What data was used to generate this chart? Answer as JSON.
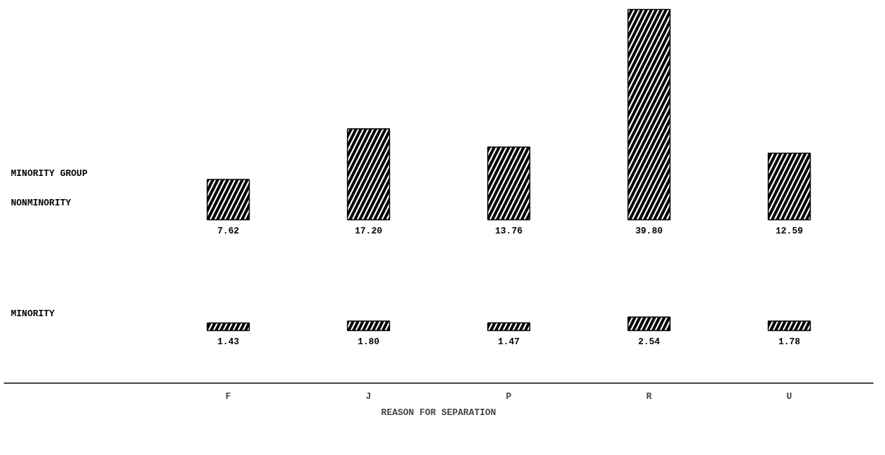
{
  "chart_data": [
    {
      "type": "bar",
      "ylabel": "MINORITY GROUP",
      "categories": [
        null,
        null,
        null,
        null,
        null
      ],
      "tick_labels": false,
      "series": [
        {
          "name": "NONMINORITY",
          "color": "#000000",
          "values": [
            7.62,
            17.2,
            13.76,
            39.8,
            12.59
          ],
          "value_labels": [
            "7.62",
            "17.20",
            "13.76",
            "39.80",
            "12.59"
          ]
        }
      ]
    },
    {
      "type": "bar",
      "xlabel": "REASON FOR SEPARATION",
      "categories": [
        "F",
        "J",
        "P",
        "R",
        "U"
      ],
      "tick_labels": "x",
      "series": [
        {
          "name": "MINORITY",
          "color": "#000000",
          "values": [
            1.43,
            1.8,
            1.47,
            2.54,
            1.78
          ],
          "value_labels": [
            "1.43",
            "1.80",
            "1.47",
            "2.54",
            "1.78"
          ]
        }
      ]
    }
  ]
}
